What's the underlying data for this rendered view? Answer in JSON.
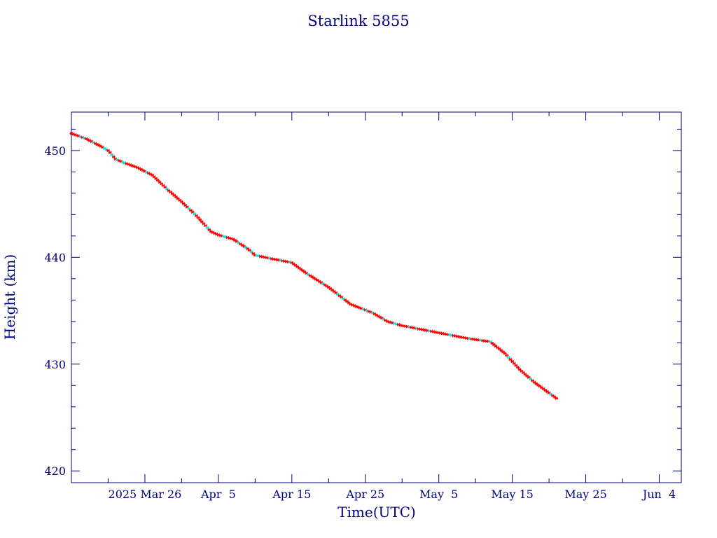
{
  "chart_data": {
    "type": "line",
    "title": "Starlink 5855",
    "xlabel": "Time(UTC)",
    "ylabel": "Height (km)",
    "x_tick_labels": [
      {
        "date": "2025-03-26",
        "label": "2025 Mar 26"
      },
      {
        "date": "2025-04-05",
        "label": "Apr  5"
      },
      {
        "date": "2025-04-15",
        "label": "Apr 15"
      },
      {
        "date": "2025-04-25",
        "label": "Apr 25"
      },
      {
        "date": "2025-05-05",
        "label": "May  5"
      },
      {
        "date": "2025-05-15",
        "label": "May 15"
      },
      {
        "date": "2025-05-25",
        "label": "May 25"
      },
      {
        "date": "2025-06-04",
        "label": "Jun  4"
      }
    ],
    "y_ticks": [
      420,
      430,
      440,
      450
    ],
    "xlim": [
      "2025-03-16",
      "2025-06-07"
    ],
    "ylim": [
      418.9,
      453.6
    ],
    "grid": false,
    "colors": {
      "frame": "#00007f",
      "text": "#00007f",
      "line": "#000000",
      "marker_primary": "#ff0000",
      "marker_secondary": "#00e5e5"
    },
    "series": [
      {
        "x": [
          "2025-03-16",
          "2025-03-18",
          "2025-03-20",
          "2025-03-21",
          "2025-03-22",
          "2025-03-23",
          "2025-03-25",
          "2025-03-27",
          "2025-03-29",
          "2025-03-31",
          "2025-04-02",
          "2025-04-04",
          "2025-04-05",
          "2025-04-07",
          "2025-04-09",
          "2025-04-10",
          "2025-04-12",
          "2025-04-15",
          "2025-04-17",
          "2025-04-20",
          "2025-04-23",
          "2025-04-26",
          "2025-04-28",
          "2025-04-30",
          "2025-05-03",
          "2025-05-06",
          "2025-05-09",
          "2025-05-12",
          "2025-05-14",
          "2025-05-16",
          "2025-05-18",
          "2025-05-20",
          "2025-05-21"
        ],
        "y": [
          451.6,
          451.1,
          450.4,
          450.0,
          449.2,
          448.9,
          448.4,
          447.7,
          446.4,
          445.2,
          443.9,
          442.4,
          442.1,
          441.7,
          440.8,
          440.2,
          439.9,
          439.5,
          438.5,
          437.2,
          435.6,
          434.8,
          434.0,
          433.6,
          433.2,
          432.8,
          432.4,
          432.1,
          431.0,
          429.5,
          428.3,
          427.3,
          426.8
        ]
      }
    ]
  }
}
